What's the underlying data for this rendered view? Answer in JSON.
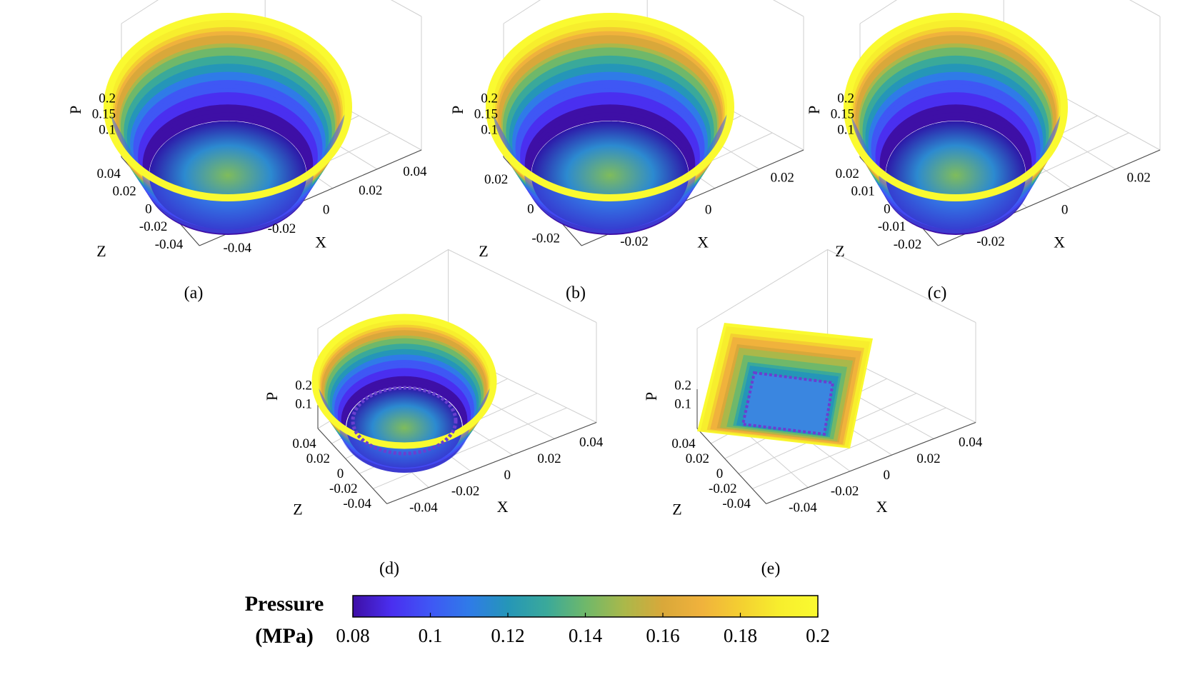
{
  "colors": {
    "colormap": [
      "#3e0fa6",
      "#4a2ff0",
      "#3f57f5",
      "#2f7be8",
      "#2596b8",
      "#3aa99a",
      "#6fb86a",
      "#aab84a",
      "#d9a83a",
      "#f0b23c",
      "#f4cf31",
      "#f7ee2d",
      "#fafa30"
    ],
    "axis_box": "#4d4d4d",
    "grid": "#cfcfcf"
  },
  "chart_data": [
    {
      "type": "surface",
      "panel_label": "(a)",
      "shape": "circular",
      "xlabel": "X",
      "zlabel": "Z",
      "plabel": "P",
      "p_ticks": [
        "0.2",
        "0.15",
        "0.1"
      ],
      "z_ticks": [
        "0.04",
        "0.02",
        "0",
        "-0.02",
        "-0.04"
      ],
      "x_ticks": [
        "0.04",
        "0.02",
        "0",
        "-0.02",
        "-0.04"
      ],
      "p_range": [
        0.08,
        0.2
      ]
    },
    {
      "type": "surface",
      "panel_label": "(b)",
      "shape": "circular",
      "xlabel": "X",
      "zlabel": "Z",
      "plabel": "P",
      "p_ticks": [
        "0.2",
        "0.15",
        "0.1"
      ],
      "z_ticks": [
        "0.02",
        "0",
        "-0.02"
      ],
      "x_ticks": [
        "0.02",
        "0",
        "-0.02"
      ],
      "p_range": [
        0.08,
        0.2
      ]
    },
    {
      "type": "surface",
      "panel_label": "(c)",
      "shape": "circular",
      "xlabel": "X",
      "zlabel": "Z",
      "plabel": "P",
      "p_ticks": [
        "0.2",
        "0.15",
        "0.1"
      ],
      "z_ticks": [
        "0.02",
        "0.01",
        "0",
        "-0.01",
        "-0.02"
      ],
      "x_ticks": [
        "0.02",
        "0",
        "-0.02"
      ],
      "p_range": [
        0.08,
        0.2
      ]
    },
    {
      "type": "surface",
      "panel_label": "(d)",
      "shape": "circular",
      "xlabel": "X",
      "zlabel": "Z",
      "plabel": "P",
      "p_ticks": [
        "0.2",
        "0.1"
      ],
      "z_ticks": [
        "0.04",
        "0.02",
        "0",
        "-0.02",
        "-0.04"
      ],
      "x_ticks": [
        "0.04",
        "0.02",
        "0",
        "-0.02",
        "-0.04"
      ],
      "p_range": [
        0.08,
        0.2
      ]
    },
    {
      "type": "surface",
      "panel_label": "(e)",
      "shape": "square",
      "xlabel": "X",
      "zlabel": "Z",
      "plabel": "P",
      "p_ticks": [
        "0.2",
        "0.1"
      ],
      "z_ticks": [
        "0.04",
        "0.02",
        "0",
        "-0.02",
        "-0.04"
      ],
      "x_ticks": [
        "0.04",
        "0.02",
        "0",
        "-0.02",
        "-0.04"
      ],
      "p_range": [
        0.08,
        0.2
      ]
    },
    {
      "type": "colorbar",
      "title": "Pressure",
      "unit": "(MPa)",
      "ticks": [
        "0.08",
        "0.1",
        "0.12",
        "0.14",
        "0.16",
        "0.18",
        "0.2"
      ],
      "range": [
        0.08,
        0.2
      ]
    }
  ]
}
